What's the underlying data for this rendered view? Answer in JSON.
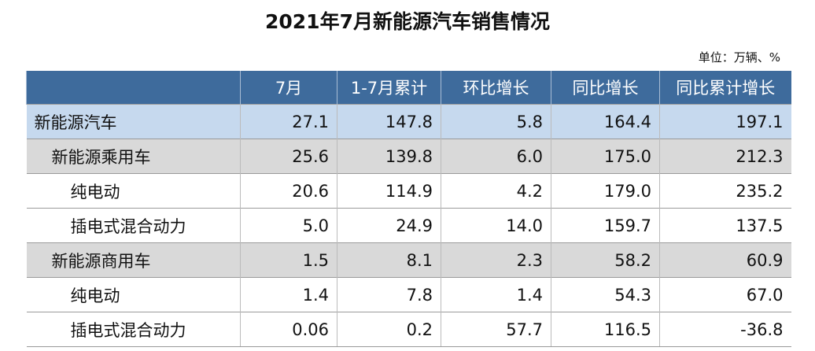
{
  "header": {
    "title": "2021年7月新能源汽车销售情况",
    "unit": "单位：万辆、%"
  },
  "table": {
    "columns": [
      "",
      "7月",
      "1-7月累计",
      "环比增长",
      "同比增长",
      "同比累计增长"
    ],
    "rows": [
      [
        "新能源汽车",
        "27.1",
        "147.8",
        "5.8",
        "164.4",
        "197.1"
      ],
      [
        "新能源乘用车",
        "25.6",
        "139.8",
        "6.0",
        "175.0",
        "212.3"
      ],
      [
        "纯电动",
        "20.6",
        "114.9",
        "4.2",
        "179.0",
        "235.2"
      ],
      [
        "插电式混合动力",
        "5.0",
        "24.9",
        "14.0",
        "159.7",
        "137.5"
      ],
      [
        "新能源商用车",
        "1.5",
        "8.1",
        "2.3",
        "58.2",
        "60.9"
      ],
      [
        "纯电动",
        "1.4",
        "7.8",
        "1.4",
        "54.3",
        "67.0"
      ],
      [
        "插电式混合动力",
        "0.06",
        "0.2",
        "57.7",
        "116.5",
        "-36.8"
      ]
    ]
  }
}
